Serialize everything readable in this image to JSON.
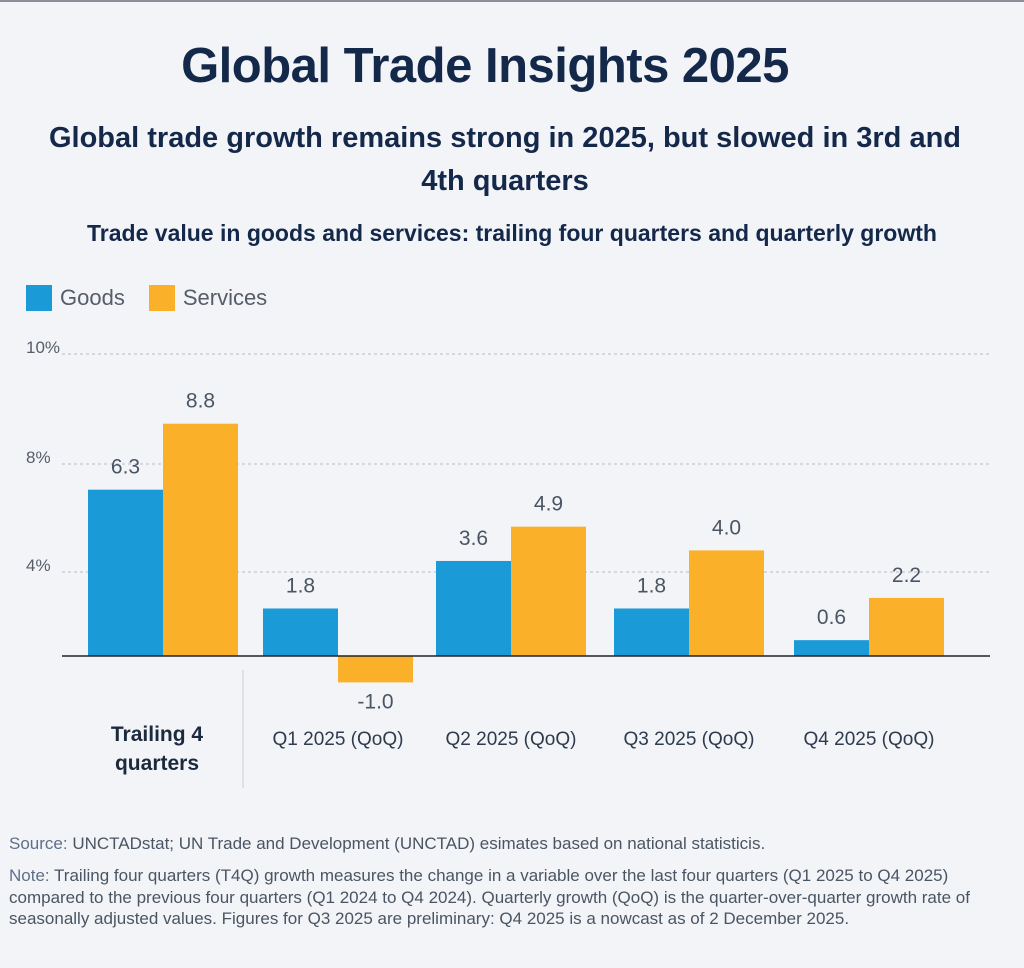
{
  "title": "Global Trade Insights 2025",
  "subtitle": "Global trade growth remains strong in 2025, but slowed in 3rd and 4th quarters",
  "chart_title": "Trade value in goods and services: trailing four quarters and quarterly growth",
  "colors": {
    "goods": "#1a9ad6",
    "services": "#fbb02a"
  },
  "chart_data": {
    "type": "bar",
    "title": "Trade value in goods and services: trailing four quarters and quarterly growth",
    "categories": [
      "Trailing 4 quarters",
      "Q1 2025 (QoQ)",
      "Q2 2025 (QoQ)",
      "Q3 2025 (QoQ)",
      "Q4 2025 (QoQ)"
    ],
    "series": [
      {
        "name": "Goods",
        "values": [
          6.3,
          1.8,
          3.6,
          1.8,
          0.6
        ]
      },
      {
        "name": "Services",
        "values": [
          8.8,
          -1.0,
          4.9,
          4.0,
          2.2
        ]
      }
    ],
    "yticks": [
      "10%",
      "8%",
      "4%"
    ],
    "legend_position": "top-left",
    "grid": true
  },
  "source": {
    "label": "Source:",
    "text": " UNCTADstat; UN Trade and Development (UNCTAD) esimates based on national statisticis."
  },
  "note": {
    "label": "Note:",
    "text": " Trailing four quarters (T4Q) growth measures the change in a variable over the last four quarters (Q1 2025 to Q4 2025) compared to the previous four quarters (Q1 2024 to Q4 2024). Quarterly growth (QoQ) is the quarter-over-quarter growth rate of seasonally adjusted values. Figures for Q3 2025 are preliminary: Q4 2025 is a nowcast as of 2 December 2025."
  }
}
